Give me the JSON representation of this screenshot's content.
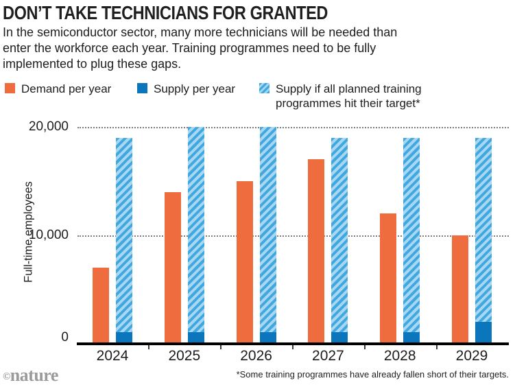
{
  "title": "DON’T TAKE TECHNICIANS FOR GRANTED",
  "subtitle": "In the semiconductor sector, many more technicians will be needed than enter the workforce each year. Training programmes need to be fully implemented to plug these gaps.",
  "legend": [
    {
      "label": "Demand per year",
      "swatch": "solid-orange"
    },
    {
      "label": "Supply per year",
      "swatch": "solid-blue"
    },
    {
      "label": "Supply if all planned training programmes hit their target*",
      "swatch": "hatched-light-blue"
    }
  ],
  "colors": {
    "demand_orange": "#EE6C3E",
    "supply_blue": "#0B76BC",
    "stripe_blue": "#3FA9DF",
    "stripe_background": "#A9D6F2",
    "logo_gray": "#9B9B9B"
  },
  "chart_data": {
    "type": "bar",
    "categories": [
      "2024",
      "2025",
      "2026",
      "2027",
      "2028",
      "2029"
    ],
    "series": [
      {
        "name": "Demand per year",
        "values": [
          7000,
          14000,
          15000,
          17000,
          12000,
          10000
        ],
        "style": "solid-orange"
      },
      {
        "name": "Supply per year",
        "values": [
          1000,
          1000,
          1000,
          1000,
          1000,
          2000
        ],
        "style": "solid-blue",
        "drawn_as": "overlay-at-base-of-hatched-bar"
      },
      {
        "name": "Supply if all planned training programmes hit their target*",
        "values": [
          19000,
          20000,
          20000,
          19000,
          19000,
          19000
        ],
        "style": "hatched-light-blue"
      }
    ],
    "title": "DON’T TAKE TECHNICIANS FOR GRANTED",
    "xlabel": "",
    "ylabel": "Full-time employees",
    "yticks": [
      "0",
      "10,000",
      "20,000"
    ],
    "ylim": [
      0,
      20000
    ],
    "gridlines": [
      10000,
      20000
    ],
    "grid_style": "dotted",
    "legend_position": "top"
  },
  "footer": {
    "note": "*Some training programmes have already fallen short of their targets.",
    "logo_copyright": "©",
    "logo_brand": "nature"
  }
}
